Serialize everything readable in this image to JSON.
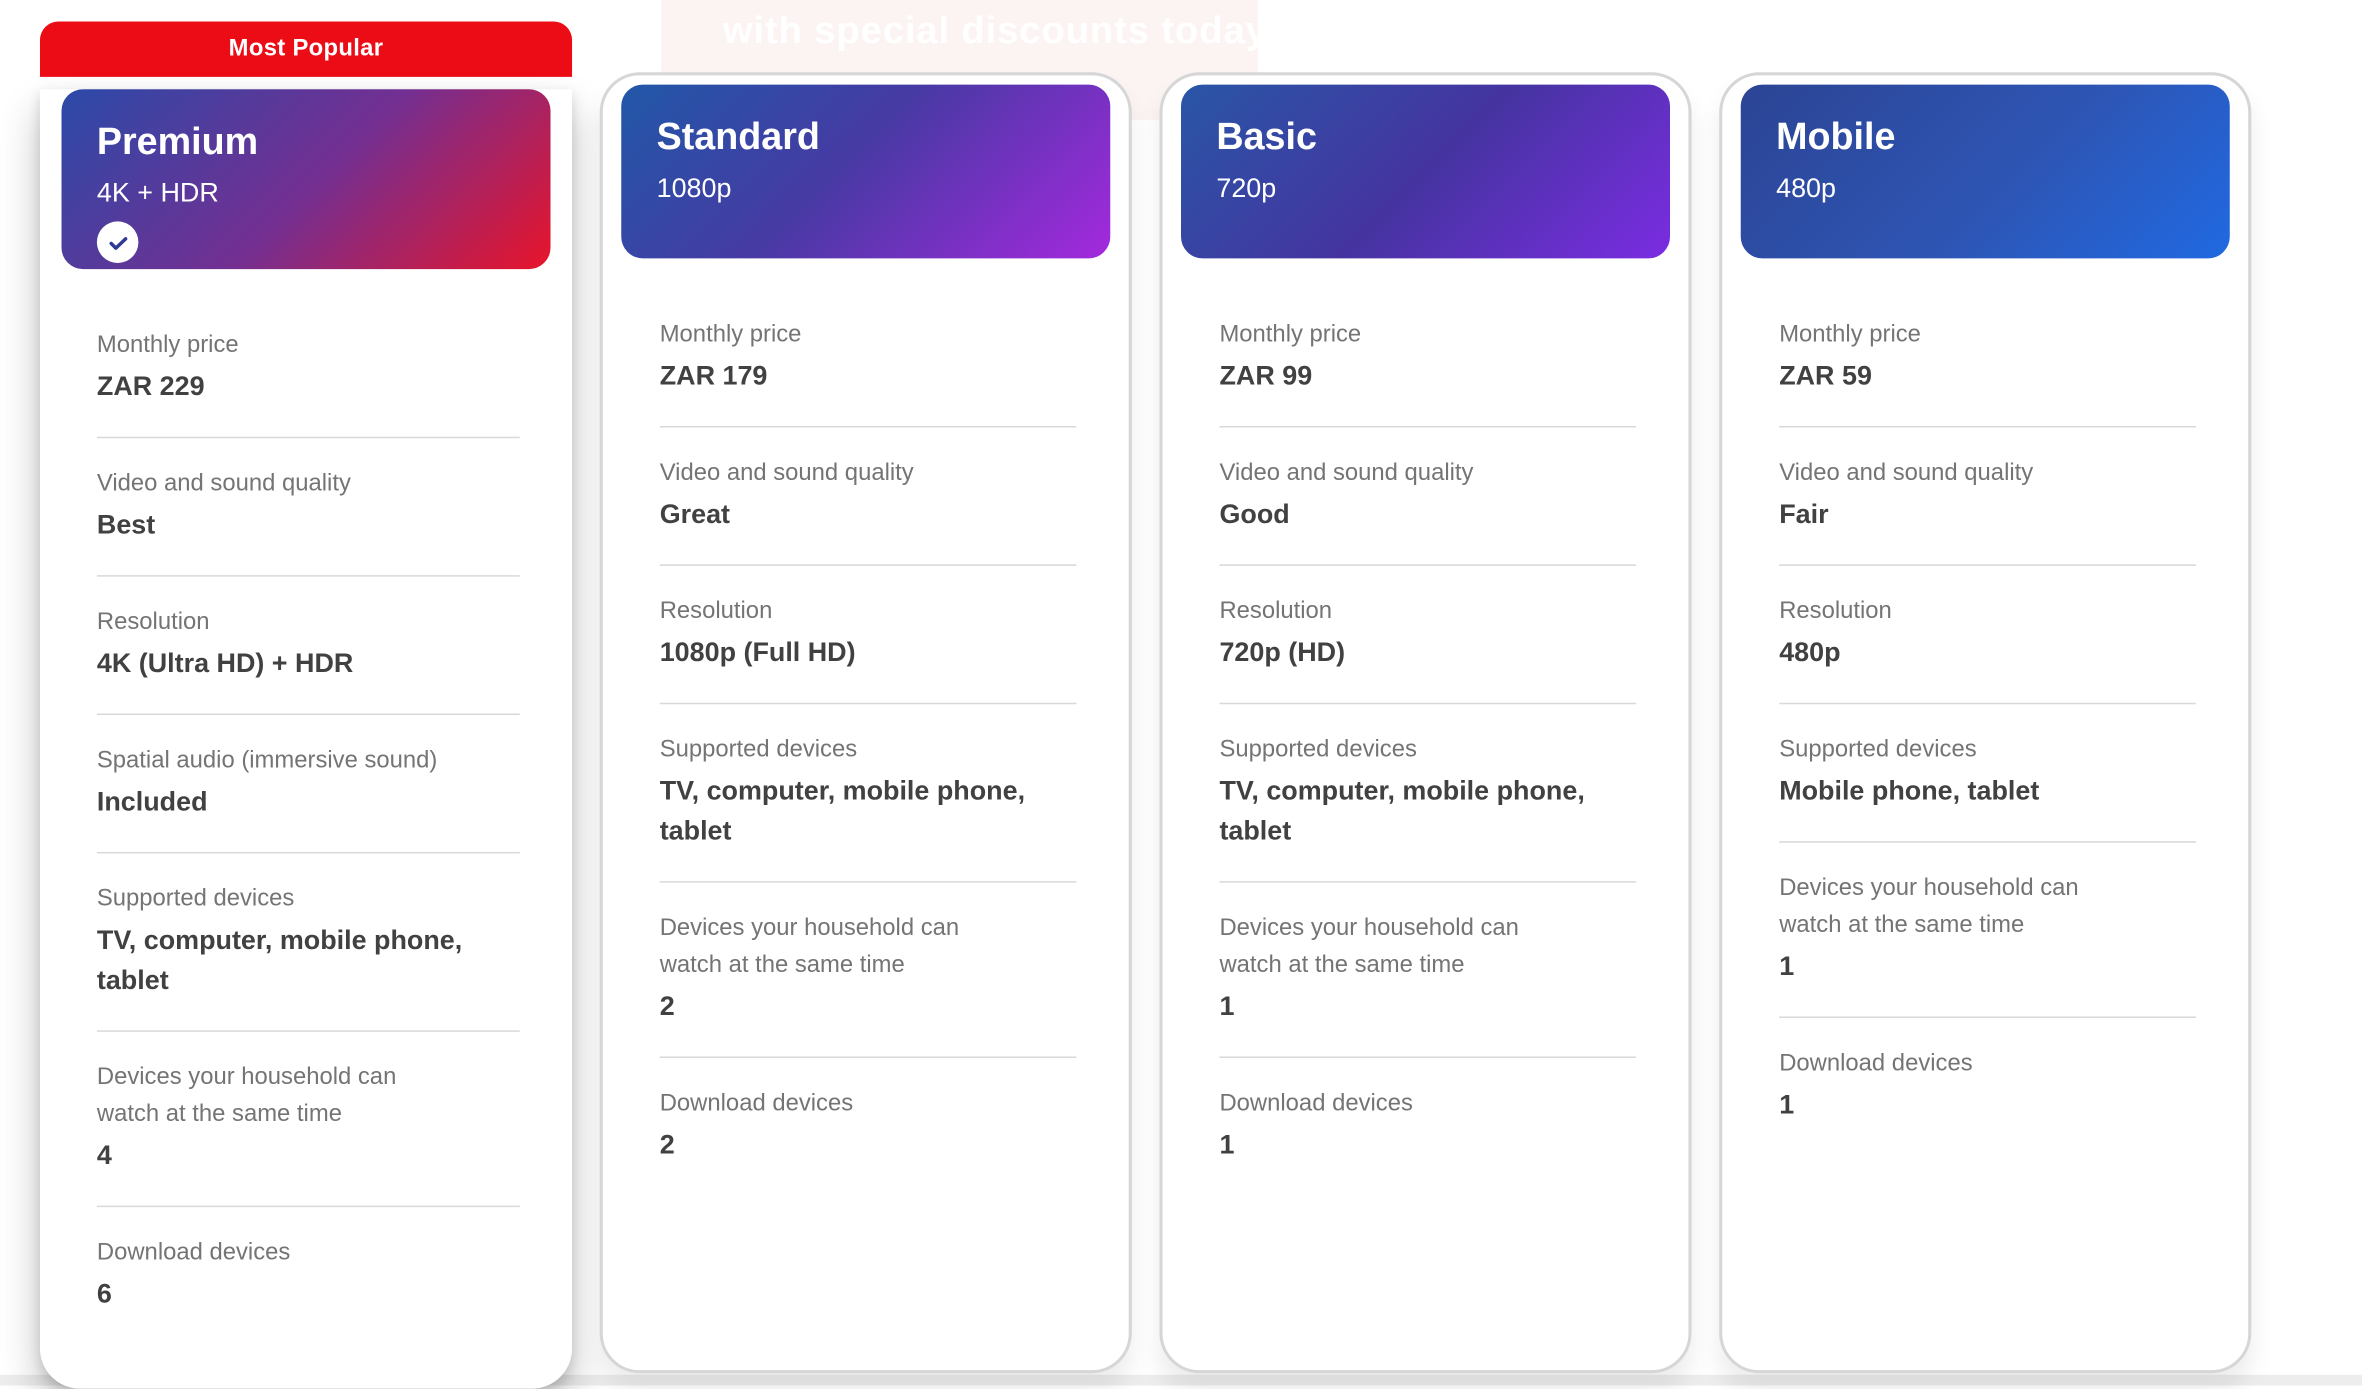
{
  "overlay": {
    "text": "with special discounts today"
  },
  "banner": {
    "label": "Most Popular"
  },
  "colors": {
    "banner_red": "#ec0c15",
    "label_gray": "#747474",
    "value_dark": "#414141",
    "divider": "#d9d9d9",
    "card_border": "#d6d6d6",
    "check_mark_blue": "#2e3a96"
  },
  "plans": [
    {
      "name": "Premium",
      "subtitle": "4K + HDR",
      "most_popular": true,
      "selected": true,
      "gradient": "linear-gradient(135deg, #2b4aa8 0%, #732f92 52%, #e8142a 100%)",
      "rows": [
        {
          "label": "Monthly price",
          "value": "ZAR 229"
        },
        {
          "label": "Video and sound quality",
          "value": "Best"
        },
        {
          "label": "Resolution",
          "value": "4K (Ultra HD) + HDR"
        },
        {
          "label": "Spatial audio (immersive sound)",
          "value": "Included"
        },
        {
          "label": "Supported devices",
          "value": "TV, computer, mobile phone,\ntablet"
        },
        {
          "label": "Devices your household can\nwatch at the same time",
          "value": "4"
        },
        {
          "label": "Download devices",
          "value": "6"
        }
      ]
    },
    {
      "name": "Standard",
      "subtitle": "1080p",
      "most_popular": false,
      "selected": false,
      "gradient": "linear-gradient(135deg, #2158a8 0%, #463aa3 45%, #a429de 100%)",
      "rows": [
        {
          "label": "Monthly price",
          "value": "ZAR 179"
        },
        {
          "label": "Video and sound quality",
          "value": "Great"
        },
        {
          "label": "Resolution",
          "value": "1080p (Full HD)"
        },
        {
          "label": "Supported devices",
          "value": "TV, computer, mobile phone,\ntablet"
        },
        {
          "label": "Devices your household can\nwatch at the same time",
          "value": "2"
        },
        {
          "label": "Download devices",
          "value": "2"
        }
      ]
    },
    {
      "name": "Basic",
      "subtitle": "720p",
      "most_popular": false,
      "selected": false,
      "gradient": "linear-gradient(135deg, #2956a6 0%, #4534a0 50%, #7b2ce2 100%)",
      "rows": [
        {
          "label": "Monthly price",
          "value": "ZAR 99"
        },
        {
          "label": "Video and sound quality",
          "value": "Good"
        },
        {
          "label": "Resolution",
          "value": "720p (HD)"
        },
        {
          "label": "Supported devices",
          "value": "TV, computer, mobile phone,\ntablet"
        },
        {
          "label": "Devices your household can\nwatch at the same time",
          "value": "1"
        },
        {
          "label": "Download devices",
          "value": "1"
        }
      ]
    },
    {
      "name": "Mobile",
      "subtitle": "480p",
      "most_popular": false,
      "selected": false,
      "gradient": "linear-gradient(135deg, #2c4494 0%, #2e55b4 55%, #2069e2 100%)",
      "rows": [
        {
          "label": "Monthly price",
          "value": "ZAR 59"
        },
        {
          "label": "Video and sound quality",
          "value": "Fair"
        },
        {
          "label": "Resolution",
          "value": "480p"
        },
        {
          "label": "Supported devices",
          "value": "Mobile phone, tablet"
        },
        {
          "label": "Devices your household can\nwatch at the same time",
          "value": "1"
        },
        {
          "label": "Download devices",
          "value": "1"
        }
      ]
    }
  ]
}
